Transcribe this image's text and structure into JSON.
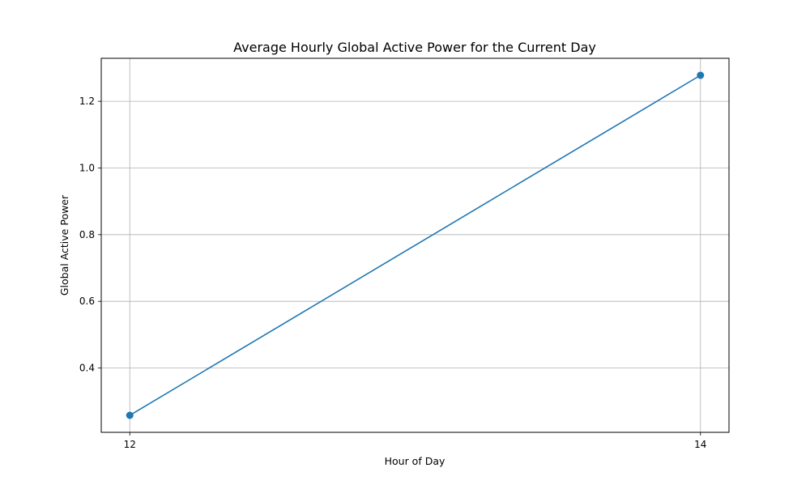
{
  "chart_data": {
    "type": "line",
    "title": "Average Hourly Global Active Power for the Current Day",
    "xlabel": "Hour of Day",
    "ylabel": "Global Active Power",
    "x": [
      12,
      14
    ],
    "series": [
      {
        "values": [
          0.258,
          1.278
        ],
        "color": "#1f77b4",
        "marker": "circle"
      }
    ],
    "x_ticks": [
      12,
      14
    ],
    "x_tick_labels": [
      "12",
      "14"
    ],
    "y_ticks": [
      0.4,
      0.6,
      0.8,
      1.0,
      1.2
    ],
    "y_tick_labels": [
      "0.4",
      "0.6",
      "0.8",
      "1.0",
      "1.2"
    ],
    "xlim": [
      11.9,
      14.1
    ],
    "ylim": [
      0.207,
      1.329
    ],
    "grid": true,
    "grid_color": "#b0b0b0"
  }
}
